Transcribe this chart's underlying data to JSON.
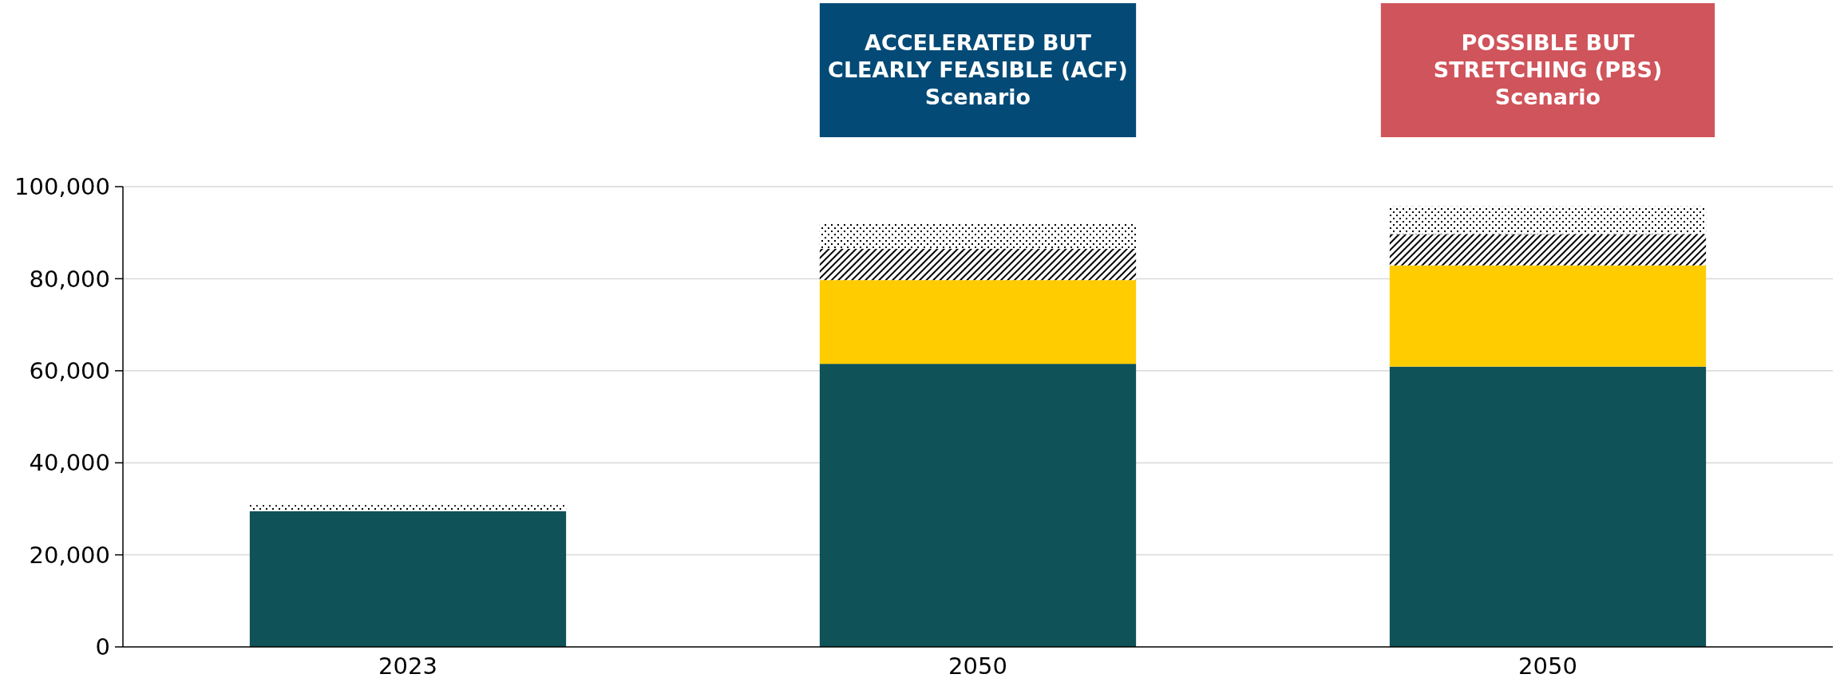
{
  "chart_data": {
    "type": "bar",
    "stacked": true,
    "categories": [
      "2023",
      "2050",
      "2050"
    ],
    "series": [
      {
        "color": "#0f5257",
        "values": [
          29500,
          61500,
          60900
        ]
      },
      {
        "color": "#ffcc00",
        "values": [
          0,
          18200,
          22000
        ]
      },
      {
        "color": "#000000",
        "values": [
          0,
          6800,
          6800
        ]
      },
      {
        "color": "#000000",
        "values": [
          1300,
          5700,
          6000
        ]
      }
    ],
    "ylim": [
      0,
      100000
    ],
    "yticks": [
      {
        "value": 0,
        "label": "0"
      },
      {
        "value": 20000,
        "label": "20,000"
      },
      {
        "value": 40000,
        "label": "40,000"
      },
      {
        "value": 60000,
        "label": "60,000"
      },
      {
        "value": 80000,
        "label": "80,000"
      },
      {
        "value": 100000,
        "label": "100,000"
      }
    ],
    "grid": "y",
    "annotations": [
      "ACCELERATED BUT\nCLEARLY FEASIBLE (ACF)\nScenario",
      "POSSIBLE BUT\nSTRETCHING (PBS)\nScenario"
    ]
  }
}
